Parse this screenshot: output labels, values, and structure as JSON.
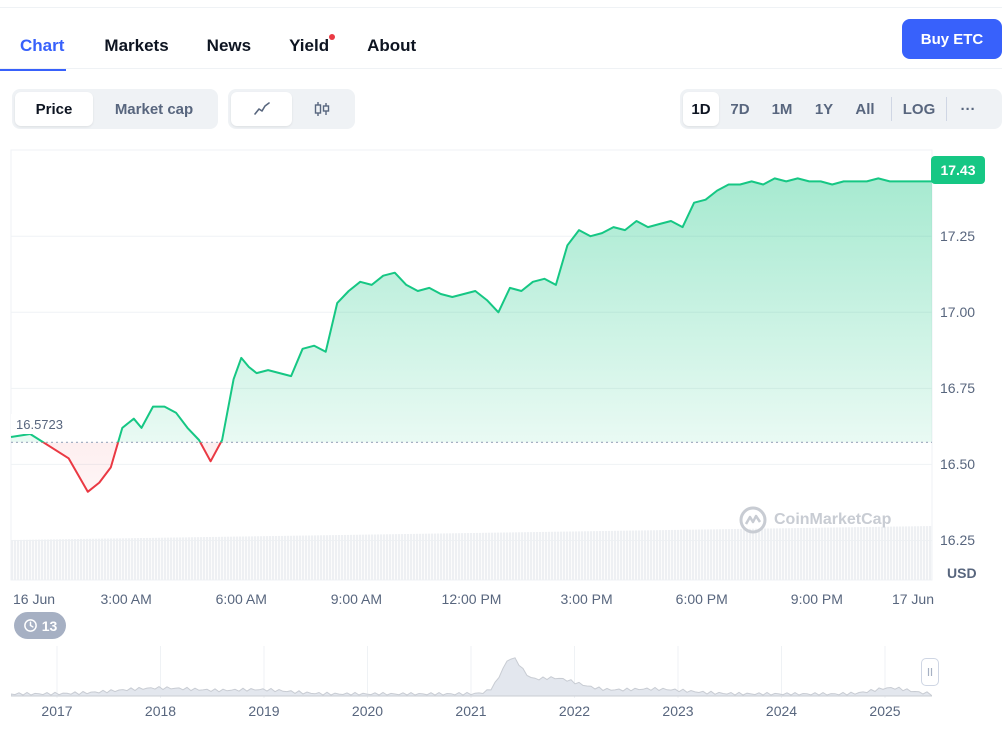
{
  "tabs": [
    {
      "label": "Chart",
      "active": true
    },
    {
      "label": "Markets"
    },
    {
      "label": "News"
    },
    {
      "label": "Yield",
      "dot": true
    },
    {
      "label": "About"
    }
  ],
  "buy_button": "Buy ETC",
  "metric_toggle": {
    "price": "Price",
    "market_cap": "Market cap",
    "selected": "Price"
  },
  "chart_type_toggle": {
    "line_icon": "line-chart-icon",
    "candle_icon": "candlestick-icon",
    "selected": "line"
  },
  "range_buttons": [
    "1D",
    "7D",
    "1M",
    "1Y",
    "All"
  ],
  "range_selected": "1D",
  "log_label": "LOG",
  "more_label": "···",
  "current_price": "17.43",
  "base_price": "16.5723",
  "currency": "USD",
  "watermark": "CoinMarketCap",
  "history_count": "13",
  "colors": {
    "up": "#16c784",
    "down": "#ea3943",
    "accent": "#3861fb"
  },
  "chart_data": {
    "type": "area",
    "x_ticks": [
      "16 Jun",
      "3:00 AM",
      "6:00 AM",
      "9:00 AM",
      "12:00 PM",
      "3:00 PM",
      "6:00 PM",
      "9:00 PM",
      "17 Jun"
    ],
    "y_ticks": [
      "17.25",
      "17.00",
      "16.75",
      "16.50",
      "16.25"
    ],
    "ylim": [
      16.12,
      17.53
    ],
    "ylabel": "USD",
    "baseline": 16.5723,
    "x_hours": [
      0,
      0.5,
      1.5,
      2,
      2.3,
      2.6,
      2.9,
      3.2,
      3.4,
      3.7,
      4,
      4.3,
      4.6,
      4.9,
      5.2,
      5.5,
      5.8,
      6,
      6.2,
      6.4,
      6.7,
      7,
      7.3,
      7.6,
      7.9,
      8.2,
      8.5,
      8.8,
      9.1,
      9.4,
      9.7,
      10,
      10.3,
      10.6,
      10.9,
      11.2,
      11.5,
      11.8,
      12.1,
      12.4,
      12.7,
      13,
      13.3,
      13.6,
      13.9,
      14.2,
      14.5,
      14.8,
      15.1,
      15.4,
      15.7,
      16,
      16.3,
      16.6,
      16.9,
      17.2,
      17.5,
      17.8,
      18.1,
      18.4,
      18.7,
      19,
      19.3,
      19.6,
      19.9,
      20.2,
      20.5,
      20.8,
      21.1,
      21.4,
      21.7,
      22,
      22.3,
      22.6,
      22.9,
      23.2,
      23.5,
      23.8,
      24
    ],
    "values": [
      16.59,
      16.6,
      16.52,
      16.41,
      16.44,
      16.49,
      16.62,
      16.65,
      16.62,
      16.69,
      16.69,
      16.67,
      16.62,
      16.58,
      16.51,
      16.58,
      16.78,
      16.85,
      16.82,
      16.8,
      16.81,
      16.8,
      16.79,
      16.88,
      16.89,
      16.87,
      17.03,
      17.07,
      17.1,
      17.09,
      17.12,
      17.13,
      17.09,
      17.07,
      17.08,
      17.06,
      17.05,
      17.06,
      17.07,
      17.04,
      17.0,
      17.08,
      17.07,
      17.1,
      17.11,
      17.09,
      17.22,
      17.27,
      17.25,
      17.26,
      17.28,
      17.27,
      17.3,
      17.28,
      17.29,
      17.3,
      17.28,
      17.36,
      17.37,
      17.4,
      17.42,
      17.42,
      17.43,
      17.42,
      17.44,
      17.43,
      17.44,
      17.43,
      17.43,
      17.42,
      17.43,
      17.43,
      17.43,
      17.44,
      17.43,
      17.43,
      17.43,
      17.43,
      17.43
    ],
    "nav_years": [
      "2017",
      "2018",
      "2019",
      "2020",
      "2021",
      "2022",
      "2023",
      "2024",
      "2025"
    ]
  }
}
